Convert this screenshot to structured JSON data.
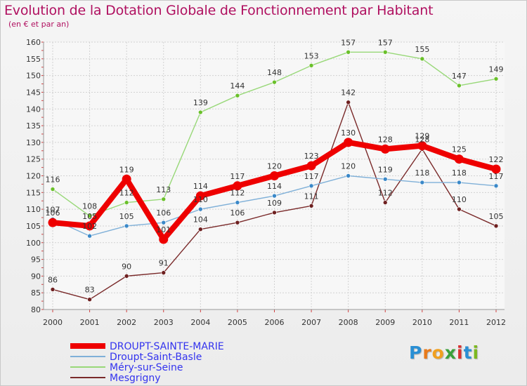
{
  "title": "Evolution de la Dotation Globale de Fonctionnement par Habitant",
  "subtitle": "(en € et par an)",
  "logo": {
    "letters": [
      {
        "ch": "P",
        "color": "#2a8fd4"
      },
      {
        "ch": "r",
        "color": "#e87a1a"
      },
      {
        "ch": "o",
        "color": "#f0a020"
      },
      {
        "ch": "x",
        "color": "#3aa03a"
      },
      {
        "ch": "i",
        "color": "#d93030"
      },
      {
        "ch": "t",
        "color": "#2a8fd4"
      },
      {
        "ch": "i",
        "color": "#7cb820"
      }
    ]
  },
  "chart_data": {
    "type": "line",
    "title": "Evolution de la Dotation Globale de Fonctionnement par Habitant",
    "subtitle": "(en € et par an)",
    "xlabel": "",
    "ylabel": "",
    "x": [
      "2000",
      "2001",
      "2002",
      "2003",
      "2004",
      "2005",
      "2006",
      "2007",
      "2008",
      "2009",
      "2010",
      "2011",
      "2012"
    ],
    "ylim": [
      80,
      160
    ],
    "yticks": [
      80,
      85,
      90,
      95,
      100,
      105,
      110,
      115,
      120,
      125,
      130,
      135,
      140,
      145,
      150,
      155,
      160
    ],
    "grid": true,
    "legend_position": "bottom-left",
    "series": [
      {
        "name": "Mesgrigny",
        "color": "#7a2a2a",
        "dot": "#6e2020",
        "emphasis": false,
        "values": [
          86,
          83,
          90,
          91,
          104,
          106,
          109,
          111,
          142,
          112,
          128,
          110,
          105
        ],
        "labels": [
          "86",
          "83",
          "90",
          "91",
          "104",
          "106",
          "109",
          "111",
          "142",
          "112",
          "128",
          "110",
          "105"
        ]
      },
      {
        "name": "Méry-sur-Seine",
        "color": "#98d878",
        "dot": "#6ac02a",
        "emphasis": false,
        "values": [
          116,
          108,
          112,
          113,
          139,
          144,
          148,
          153,
          157,
          157,
          155,
          147,
          149
        ],
        "labels": [
          "116",
          "108",
          "112",
          "113",
          "139",
          "144",
          "148",
          "153",
          "157",
          "157",
          "155",
          "147",
          "149"
        ]
      },
      {
        "name": "Droupt-Saint-Basle",
        "color": "#7fb0d8",
        "dot": "#3a88c8",
        "emphasis": false,
        "values": [
          107,
          102,
          105,
          106,
          110,
          112,
          114,
          117,
          120,
          119,
          118,
          118,
          117
        ],
        "labels": [
          "107",
          "102",
          "105",
          "106",
          "110",
          "112",
          "114",
          "117",
          "120",
          "119",
          "118",
          "118",
          "117"
        ]
      },
      {
        "name": "DROUPT-SAINTE-MARIE",
        "color": "#ee0000",
        "dot": "#ee0000",
        "emphasis": true,
        "values": [
          106,
          105,
          119,
          101,
          114,
          117,
          120,
          123,
          130,
          128,
          129,
          125,
          122
        ],
        "labels": [
          "106",
          "105",
          "119",
          "101",
          "114",
          "117",
          "120",
          "123",
          "130",
          "128",
          "129",
          "125",
          "122"
        ]
      }
    ],
    "legend_order": [
      "DROUPT-SAINTE-MARIE",
      "Droupt-Saint-Basle",
      "Méry-sur-Seine",
      "Mesgrigny"
    ]
  }
}
